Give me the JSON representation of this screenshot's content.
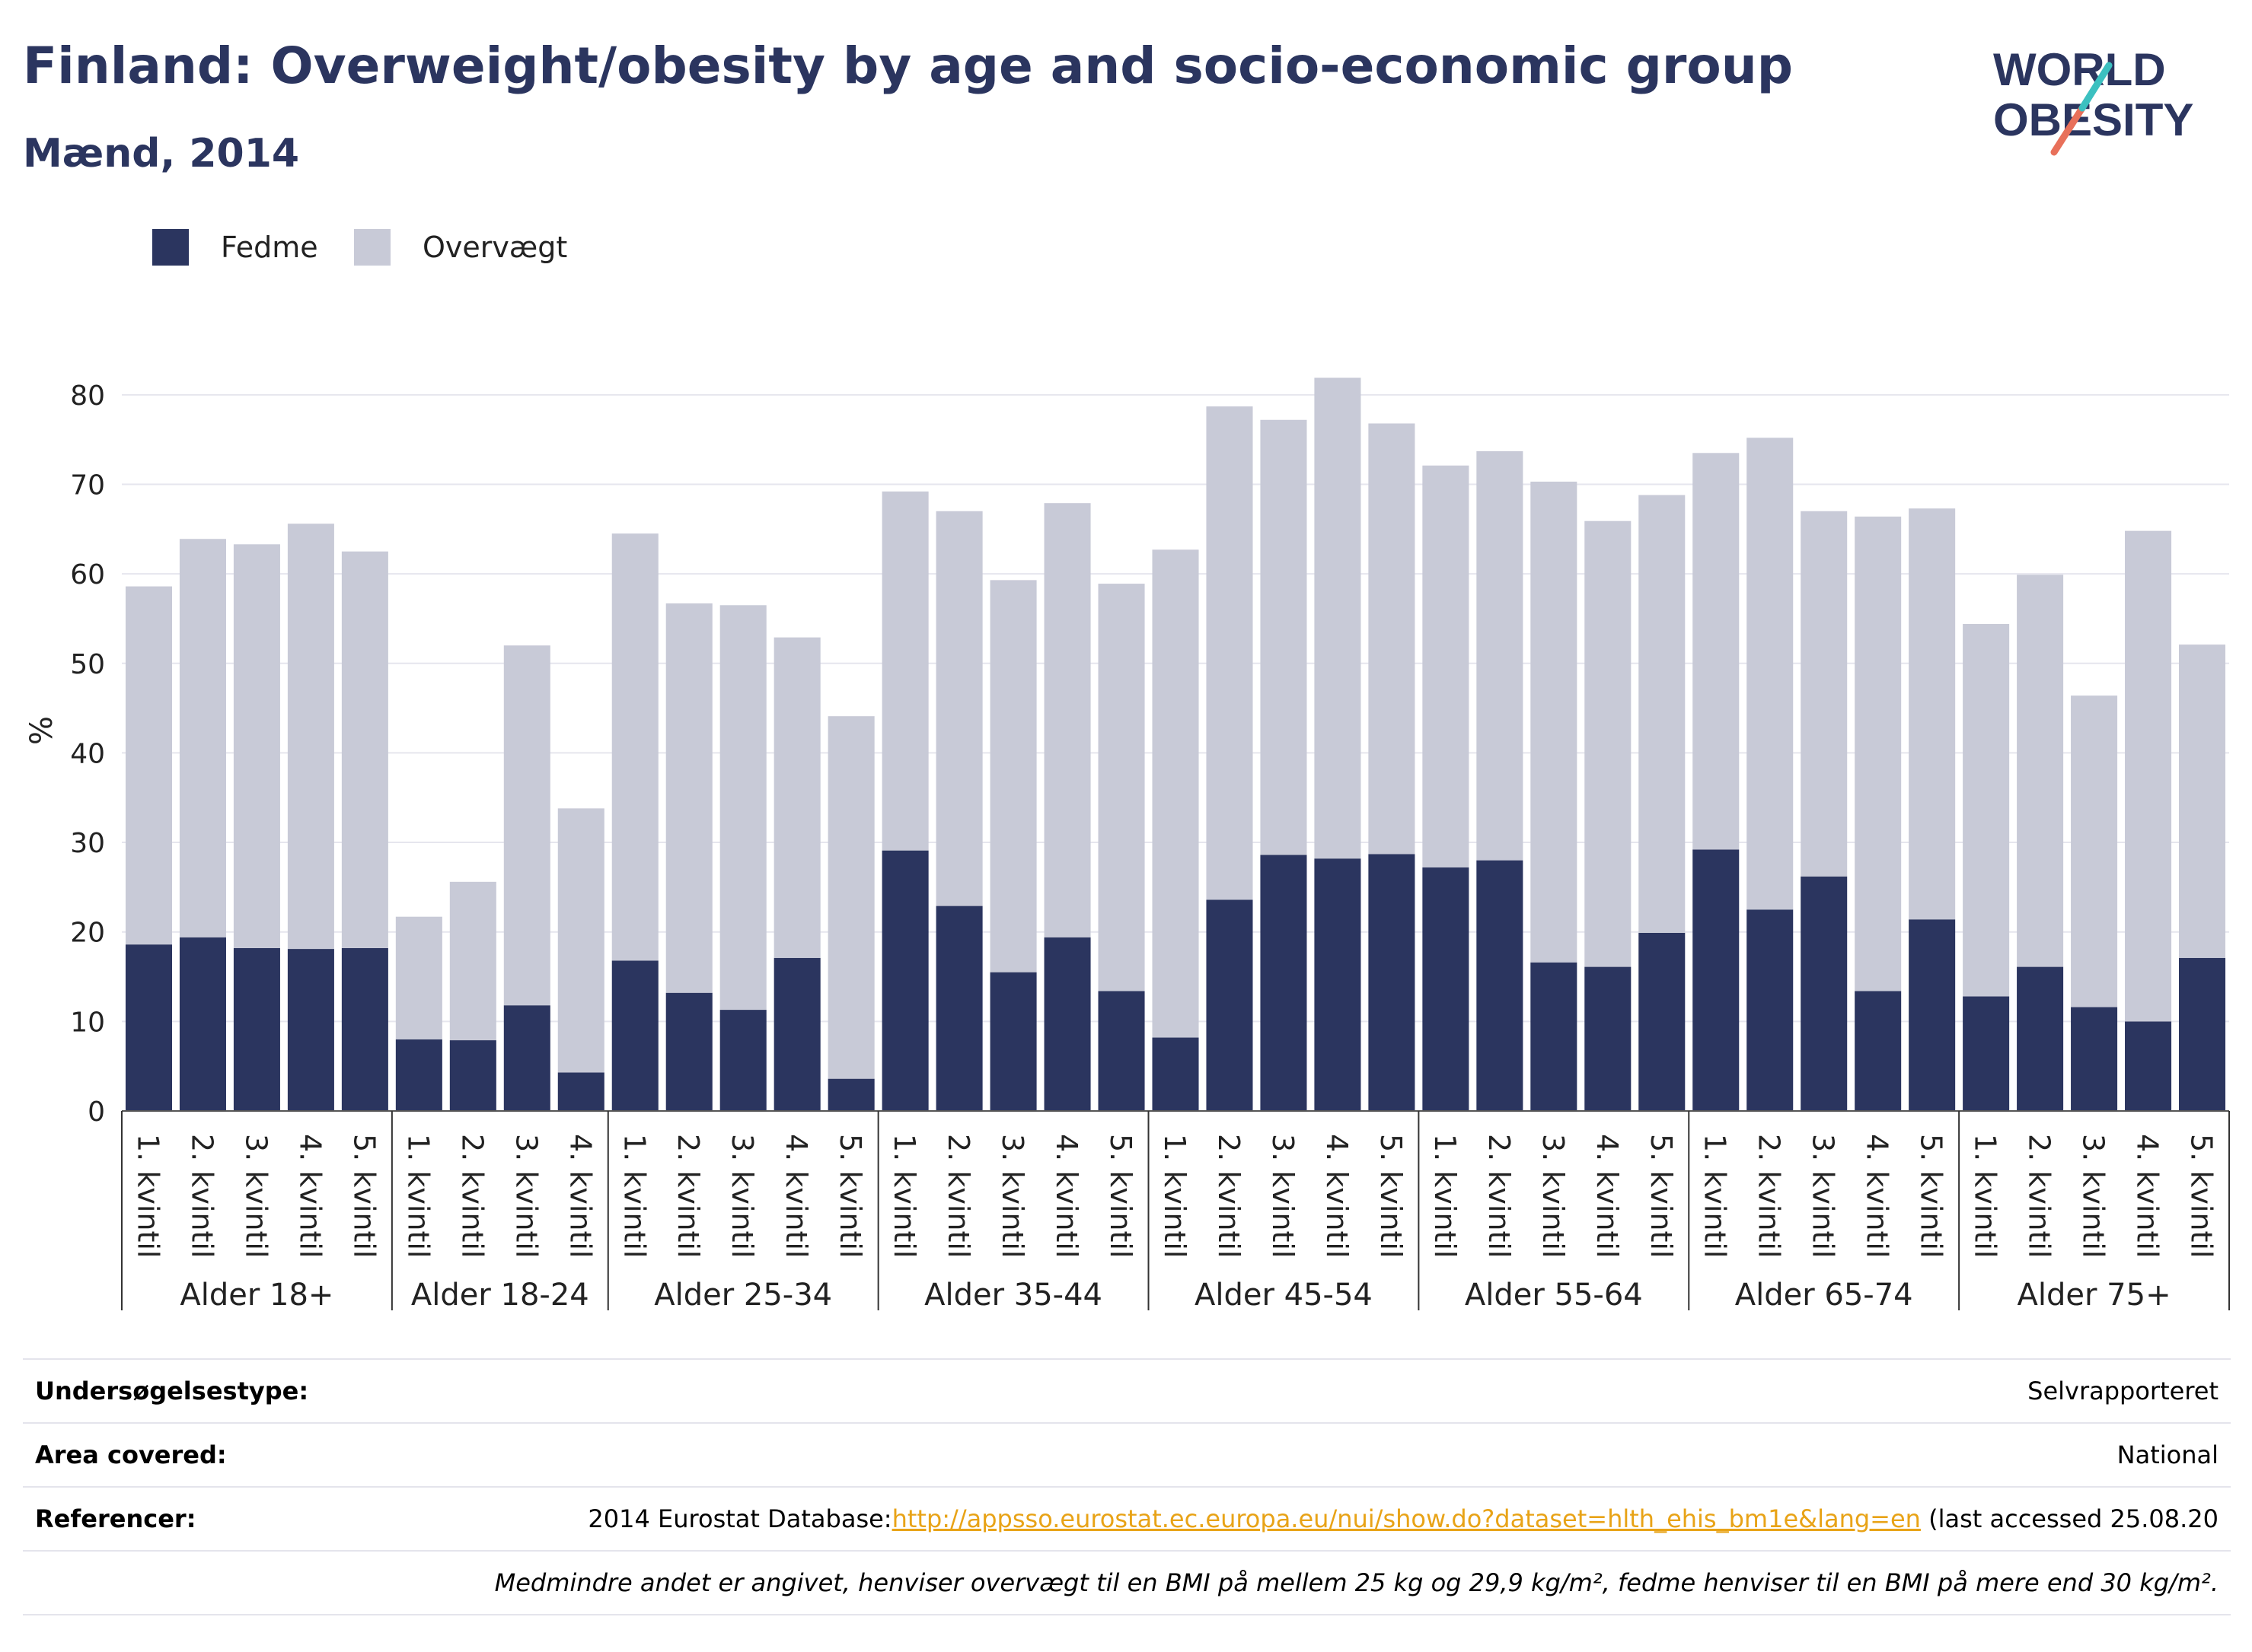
{
  "header": {
    "title": "Finland: Overweight/obesity by age and socio-economic group",
    "subtitle": "Mænd, 2014"
  },
  "logo": {
    "line1": "WORLD",
    "line2": "OBESITY"
  },
  "legend": [
    {
      "label": "Fedme",
      "color": "#2b355f"
    },
    {
      "label": "Overvægt",
      "color": "#c8cad7"
    }
  ],
  "chart_data": {
    "type": "bar",
    "stacked": true,
    "ylabel": "%",
    "ylim": [
      0,
      85
    ],
    "yticks": [
      0,
      10,
      20,
      30,
      40,
      50,
      60,
      70,
      80
    ],
    "grid": true,
    "legend_position": "top-left",
    "groups": [
      {
        "label": "Alder 18+",
        "categories": [
          "1. kvintil",
          "2. kvintil",
          "3. kvintil",
          "4. kvintil",
          "5. kvintil"
        ]
      },
      {
        "label": "Alder 18-24",
        "categories": [
          "1. kvintil",
          "2. kvintil",
          "3. kvintil",
          "4. kvintil"
        ]
      },
      {
        "label": "Alder 25-34",
        "categories": [
          "1. kvintil",
          "2. kvintil",
          "3. kvintil",
          "4. kvintil",
          "5. kvintil"
        ]
      },
      {
        "label": "Alder 35-44",
        "categories": [
          "1. kvintil",
          "2. kvintil",
          "3. kvintil",
          "4. kvintil",
          "5. kvintil"
        ]
      },
      {
        "label": "Alder 45-54",
        "categories": [
          "1. kvintil",
          "2. kvintil",
          "3. kvintil",
          "4. kvintil",
          "5. kvintil"
        ]
      },
      {
        "label": "Alder 55-64",
        "categories": [
          "1. kvintil",
          "2. kvintil",
          "3. kvintil",
          "4. kvintil",
          "5. kvintil"
        ]
      },
      {
        "label": "Alder 65-74",
        "categories": [
          "1. kvintil",
          "2. kvintil",
          "3. kvintil",
          "4. kvintil",
          "5. kvintil"
        ]
      },
      {
        "label": "Alder 75+",
        "categories": [
          "1. kvintil",
          "2. kvintil",
          "3. kvintil",
          "4. kvintil",
          "5. kvintil"
        ]
      }
    ],
    "series": [
      {
        "name": "Fedme",
        "color": "#2b355f",
        "values": [
          18.6,
          19.4,
          18.2,
          18.1,
          18.2,
          8.0,
          7.9,
          11.8,
          4.3,
          16.8,
          13.2,
          11.3,
          17.1,
          3.6,
          29.1,
          22.9,
          15.5,
          19.4,
          13.4,
          8.2,
          23.6,
          28.6,
          28.2,
          28.7,
          27.2,
          28.0,
          16.6,
          16.1,
          19.9,
          29.2,
          22.5,
          26.2,
          13.4,
          21.4,
          12.8,
          16.1,
          11.6,
          10.0,
          17.1
        ]
      },
      {
        "name": "Overvægt",
        "color": "#c8cad7",
        "values": [
          40.0,
          44.5,
          45.1,
          47.5,
          44.3,
          13.7,
          17.7,
          40.2,
          29.5,
          47.7,
          43.5,
          45.2,
          35.8,
          40.5,
          40.1,
          44.1,
          43.8,
          48.5,
          45.5,
          54.5,
          55.1,
          48.6,
          53.7,
          48.1,
          44.9,
          45.7,
          53.7,
          49.8,
          48.9,
          44.3,
          52.7,
          40.8,
          53.0,
          45.9,
          41.6,
          43.8,
          34.8,
          54.8,
          35.0
        ]
      }
    ]
  },
  "meta": {
    "rows": [
      {
        "label": "Undersøgelsestype:",
        "value": "Selvrapporteret"
      },
      {
        "label": "Area covered:",
        "value": "National"
      },
      {
        "label": "Referencer:",
        "value_prefix": "2014 Eurostat Database:",
        "link": "http://appsso.eurostat.ec.europa.eu/nui/show.do?dataset=hlth_ehis_bm1e&lang=en",
        "value_suffix": " (last accessed 25.08.20"
      }
    ],
    "note": "Medmindre andet er angivet, henviser overvægt til en BMI på mellem 25 kg og 29,9 kg/m², fedme henviser til en BMI på mere end 30 kg/m²."
  }
}
